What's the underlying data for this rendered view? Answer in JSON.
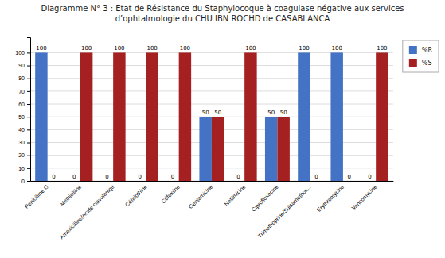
{
  "chart_data": {
    "type": "bar",
    "title": "Diagramme N° 3 : Etat de Résistance du Staphylocoque à coagulase négative aux  services d’ophtalmologie du CHU IBN ROCHD de CASABLANCA",
    "categories": [
      "Penicilline G",
      "Methicilline",
      "Amoxicilline/Acide clavulaniqu",
      "Céfalothine",
      "Céfoxtine",
      "Gentamicine",
      "Netilmicine",
      "Ciprofloxacine",
      "Trimethoprine/Sulsamethox...",
      "Erythromycine",
      "Vancomycine"
    ],
    "series": [
      {
        "name": "%R",
        "color": "#4472C4",
        "values": [
          100,
          0,
          0,
          0,
          0,
          50,
          0,
          50,
          100,
          100,
          0
        ]
      },
      {
        "name": "%S",
        "color": "#A52020",
        "values": [
          0,
          100,
          100,
          100,
          100,
          50,
          100,
          50,
          0,
          0,
          100
        ]
      }
    ],
    "ylim": [
      0,
      112
    ],
    "yticks": [
      0,
      10,
      20,
      30,
      40,
      50,
      60,
      70,
      80,
      90,
      100
    ],
    "grid": true,
    "legend": "upper right",
    "data_labels": true
  }
}
